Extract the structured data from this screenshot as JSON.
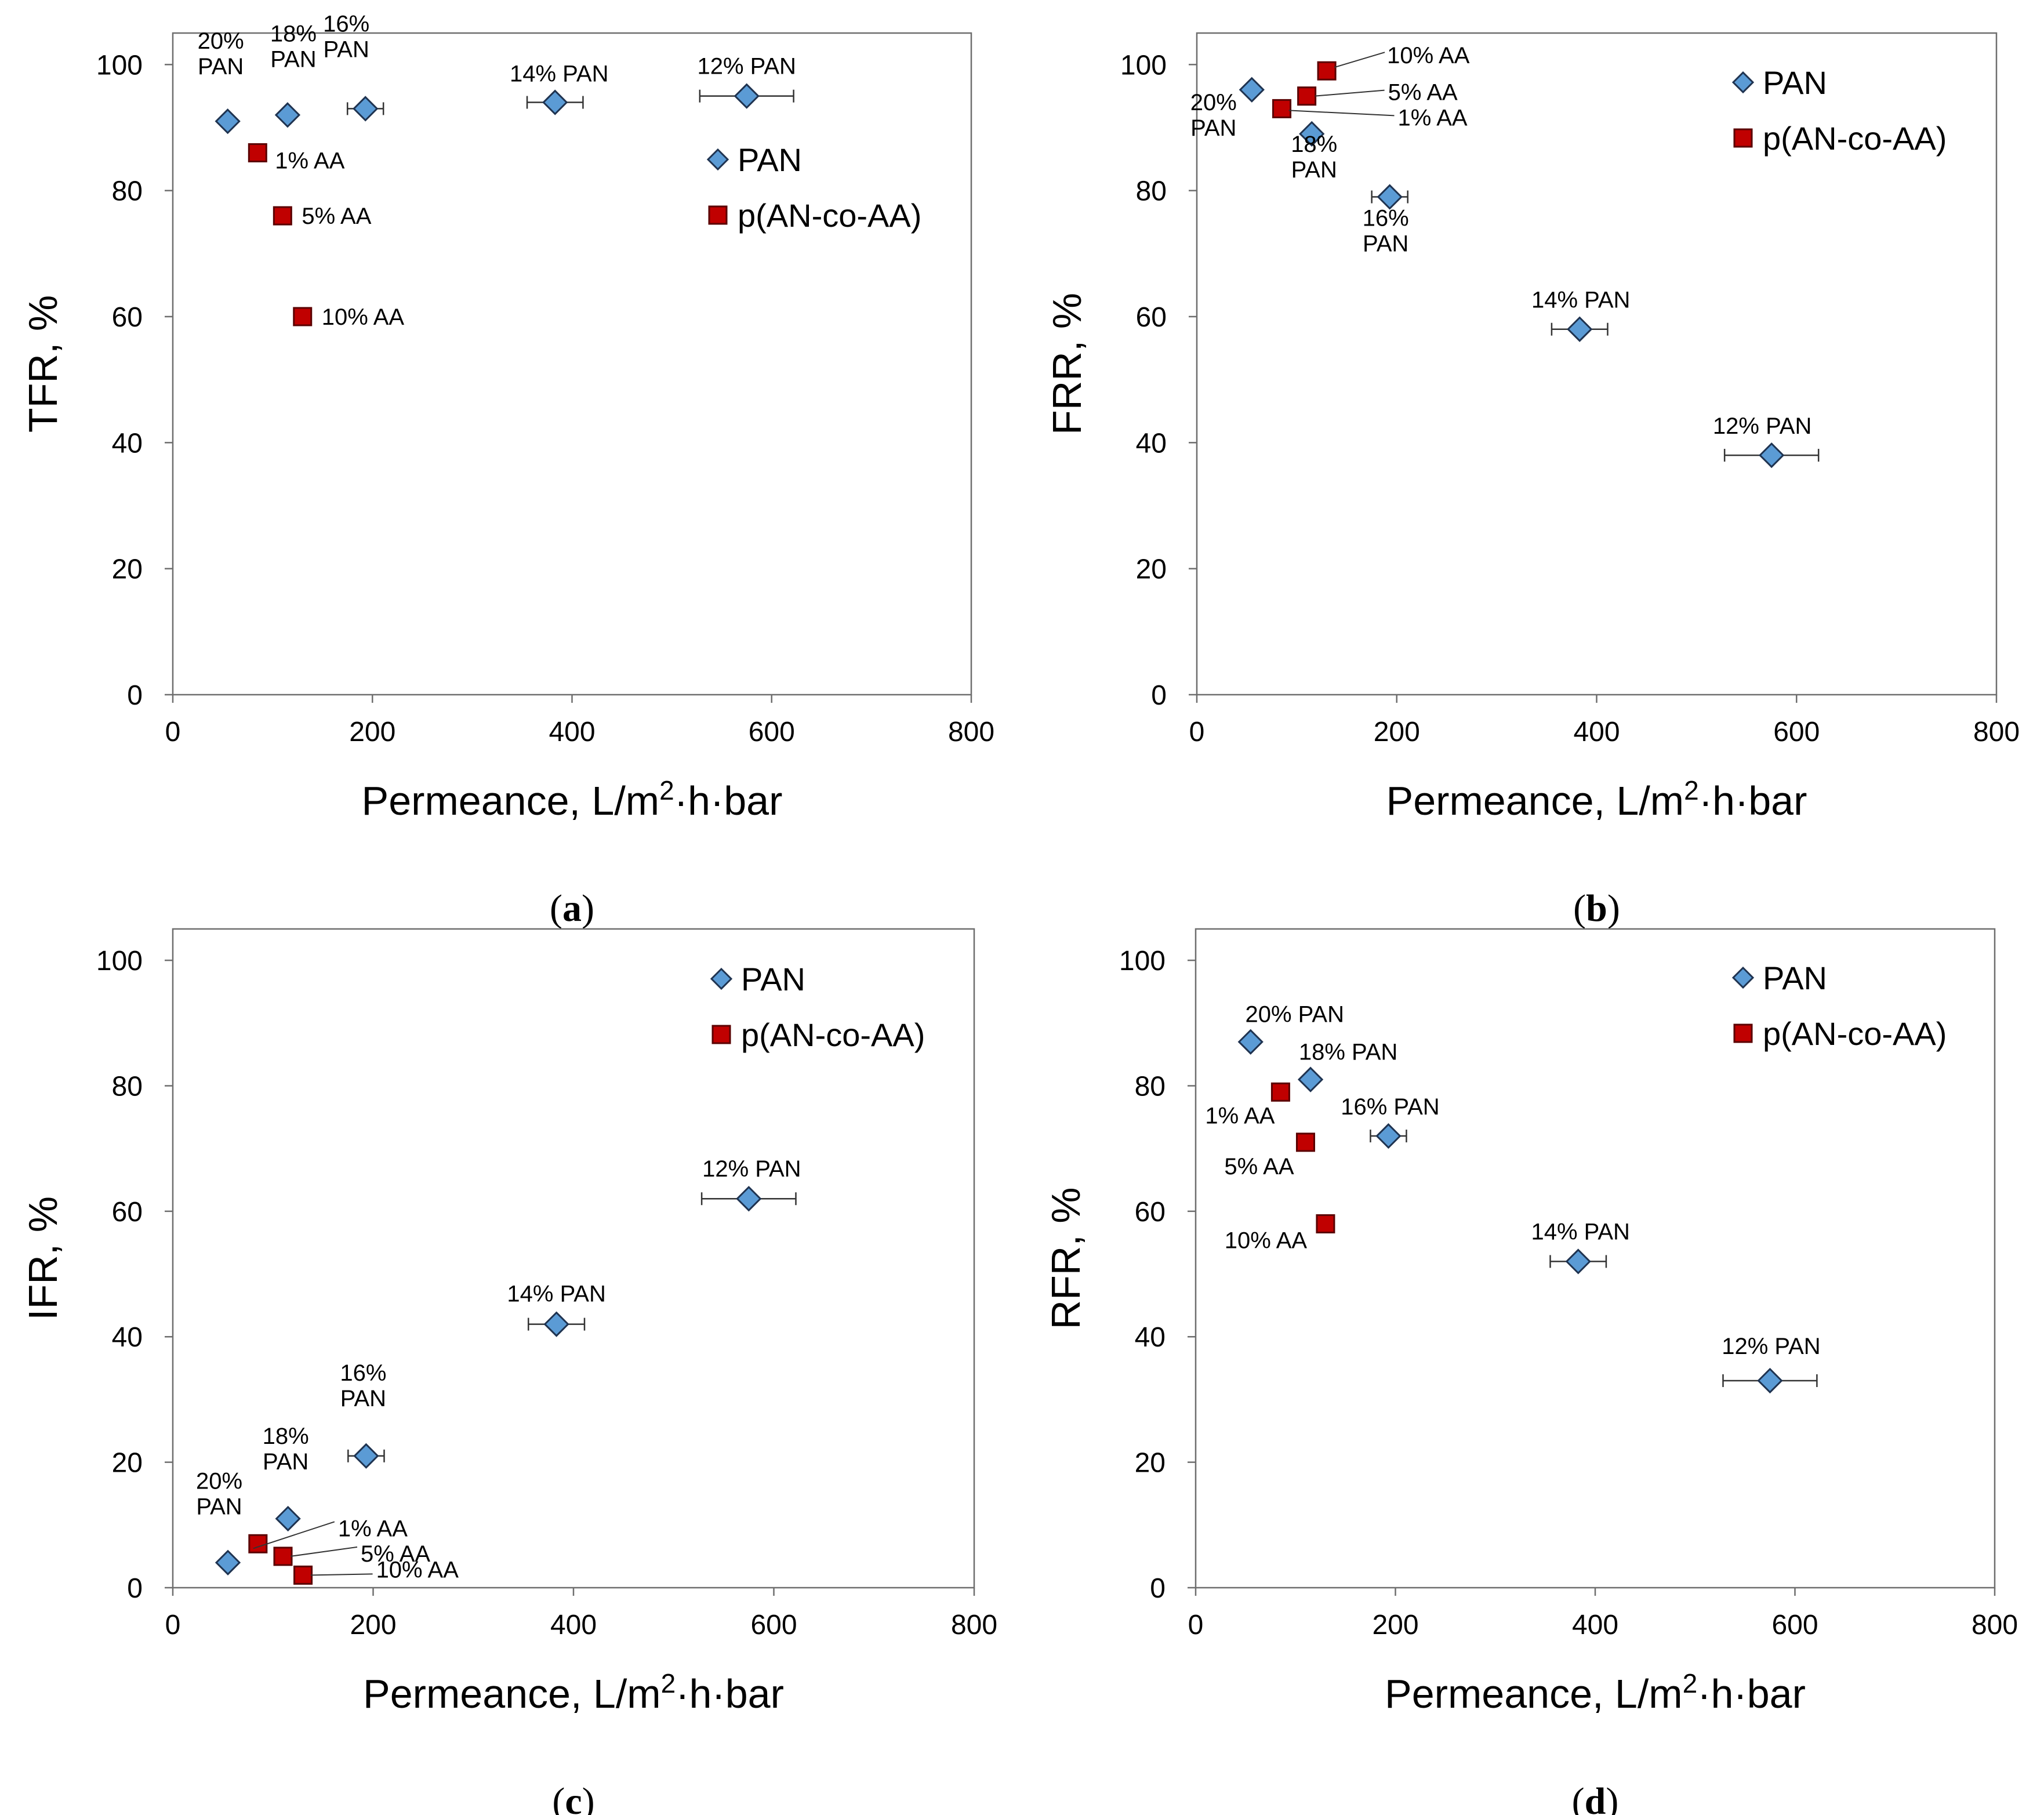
{
  "colors": {
    "pan": "#5b9bd5",
    "pan_stroke": "#1f3350",
    "aa": "#c00000",
    "aa_stroke": "#5a0000"
  },
  "legend": {
    "pan": "PAN",
    "aa": "p(AN-co-AA)"
  },
  "chart_data": [
    {
      "type": "scatter",
      "panel_label": "a",
      "ylabel": "TFR, %",
      "xlabel_pre": "Permeance, L/m",
      "xlabel_sup": "2",
      "xlabel_post": "·h·bar",
      "xlim": [
        0,
        800
      ],
      "ylim": [
        0,
        105
      ],
      "xticks": [
        "0",
        "200",
        "400",
        "600",
        "800"
      ],
      "yticks": [
        "0",
        "20",
        "40",
        "60",
        "80",
        "100"
      ],
      "legend_position": "right",
      "series": [
        {
          "name": "PAN",
          "points": [
            {
              "x": 55,
              "y": 91,
              "xerr": 0,
              "label": [
                "20%",
                "PAN"
              ]
            },
            {
              "x": 115,
              "y": 92,
              "xerr": 0,
              "label": [
                "18%",
                "PAN"
              ]
            },
            {
              "x": 193,
              "y": 93,
              "xerr": 18,
              "label": [
                "16%",
                "PAN"
              ]
            },
            {
              "x": 383,
              "y": 94,
              "xerr": 28,
              "label": [
                "14% PAN"
              ]
            },
            {
              "x": 575,
              "y": 95,
              "xerr": 47,
              "label": [
                "12% PAN"
              ]
            }
          ]
        },
        {
          "name": "p(AN-co-AA)",
          "points": [
            {
              "x": 85,
              "y": 86,
              "xerr": 0,
              "label": [
                "1% AA"
              ]
            },
            {
              "x": 110,
              "y": 76,
              "xerr": 0,
              "label": [
                "5% AA"
              ]
            },
            {
              "x": 130,
              "y": 60,
              "xerr": 0,
              "label": [
                "10% AA"
              ]
            }
          ]
        }
      ]
    },
    {
      "type": "scatter",
      "panel_label": "b",
      "ylabel": "FRR, %",
      "xlabel_pre": "Permeance, L/m",
      "xlabel_sup": "2",
      "xlabel_post": "·h·bar",
      "xlim": [
        0,
        800
      ],
      "ylim": [
        0,
        105
      ],
      "xticks": [
        "0",
        "200",
        "400",
        "600",
        "800"
      ],
      "yticks": [
        "0",
        "20",
        "40",
        "60",
        "80",
        "100"
      ],
      "legend_position": "top-right",
      "series": [
        {
          "name": "PAN",
          "points": [
            {
              "x": 55,
              "y": 96,
              "xerr": 0,
              "label": [
                "20%",
                "PAN"
              ]
            },
            {
              "x": 115,
              "y": 89,
              "xerr": 0,
              "label": [
                "18%",
                "PAN"
              ]
            },
            {
              "x": 193,
              "y": 79,
              "xerr": 18,
              "label": [
                "16%",
                "PAN"
              ]
            },
            {
              "x": 383,
              "y": 58,
              "xerr": 28,
              "label": [
                "14% PAN"
              ]
            },
            {
              "x": 575,
              "y": 38,
              "xerr": 47,
              "label": [
                "12% PAN"
              ]
            }
          ]
        },
        {
          "name": "p(AN-co-AA)",
          "points": [
            {
              "x": 85,
              "y": 93,
              "xerr": 0,
              "label": [
                "1% AA"
              ]
            },
            {
              "x": 110,
              "y": 95,
              "xerr": 0,
              "label": [
                "5% AA"
              ]
            },
            {
              "x": 130,
              "y": 99,
              "xerr": 0,
              "label": [
                "10% AA"
              ]
            }
          ]
        }
      ]
    },
    {
      "type": "scatter",
      "panel_label": "c",
      "ylabel": "IFR, %",
      "xlabel_pre": "Permeance, L/m",
      "xlabel_sup": "2",
      "xlabel_post": "·h·bar",
      "xlim": [
        0,
        800
      ],
      "ylim": [
        0,
        105
      ],
      "xticks": [
        "0",
        "200",
        "400",
        "600",
        "800"
      ],
      "yticks": [
        "0",
        "20",
        "40",
        "60",
        "80",
        "100"
      ],
      "legend_position": "top-right",
      "series": [
        {
          "name": "PAN",
          "points": [
            {
              "x": 55,
              "y": 4,
              "xerr": 0,
              "label": [
                "20%",
                "PAN"
              ]
            },
            {
              "x": 115,
              "y": 11,
              "xerr": 0,
              "label": [
                "18%",
                "PAN"
              ]
            },
            {
              "x": 193,
              "y": 21,
              "xerr": 18,
              "label": [
                "16%",
                "PAN"
              ]
            },
            {
              "x": 383,
              "y": 42,
              "xerr": 28,
              "label": [
                "14% PAN"
              ]
            },
            {
              "x": 575,
              "y": 62,
              "xerr": 47,
              "label": [
                "12% PAN"
              ]
            }
          ]
        },
        {
          "name": "p(AN-co-AA)",
          "points": [
            {
              "x": 85,
              "y": 7,
              "xerr": 0,
              "label": [
                "1% AA"
              ]
            },
            {
              "x": 110,
              "y": 5,
              "xerr": 0,
              "label": [
                "5% AA"
              ]
            },
            {
              "x": 130,
              "y": 2,
              "xerr": 0,
              "label": [
                "10% AA"
              ]
            }
          ]
        }
      ]
    },
    {
      "type": "scatter",
      "panel_label": "d",
      "ylabel": "RFR, %",
      "xlabel_pre": "Permeance, L/m",
      "xlabel_sup": "2",
      "xlabel_post": "·h·bar",
      "xlim": [
        0,
        800
      ],
      "ylim": [
        0,
        105
      ],
      "xticks": [
        "0",
        "200",
        "400",
        "600",
        "800"
      ],
      "yticks": [
        "0",
        "20",
        "40",
        "60",
        "80",
        "100"
      ],
      "legend_position": "top-right",
      "series": [
        {
          "name": "PAN",
          "points": [
            {
              "x": 55,
              "y": 87,
              "xerr": 0,
              "label": [
                "20% PAN"
              ]
            },
            {
              "x": 115,
              "y": 81,
              "xerr": 0,
              "label": [
                "18% PAN"
              ]
            },
            {
              "x": 193,
              "y": 72,
              "xerr": 18,
              "label": [
                "16% PAN"
              ]
            },
            {
              "x": 383,
              "y": 52,
              "xerr": 28,
              "label": [
                "14% PAN"
              ]
            },
            {
              "x": 575,
              "y": 33,
              "xerr": 47,
              "label": [
                "12% PAN"
              ]
            }
          ]
        },
        {
          "name": "p(AN-co-AA)",
          "points": [
            {
              "x": 85,
              "y": 79,
              "xerr": 0,
              "label": [
                "1% AA"
              ]
            },
            {
              "x": 110,
              "y": 71,
              "xerr": 0,
              "label": [
                "5% AA"
              ]
            },
            {
              "x": 130,
              "y": 58,
              "xerr": 0,
              "label": [
                "10% AA"
              ]
            }
          ]
        }
      ]
    }
  ]
}
